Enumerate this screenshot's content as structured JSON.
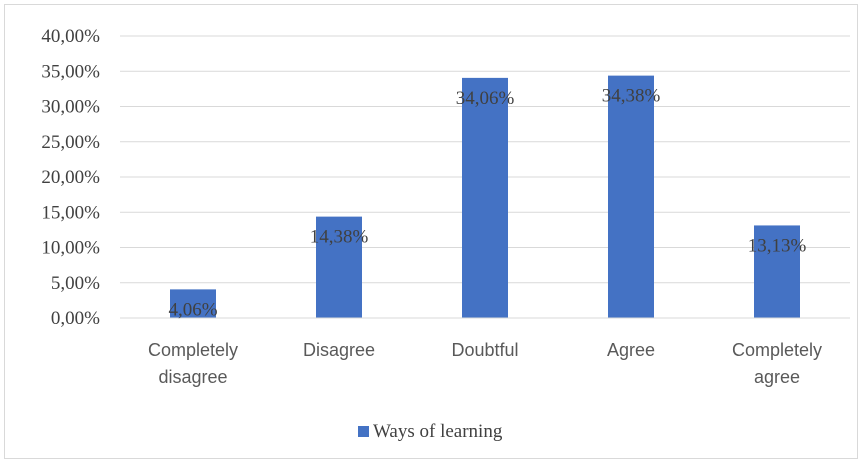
{
  "chart_data": {
    "type": "bar",
    "categories": [
      [
        "Completely",
        "disagree"
      ],
      [
        "Disagree"
      ],
      [
        "Doubtful"
      ],
      [
        "Agree"
      ],
      [
        "Completely",
        "agree"
      ]
    ],
    "series": [
      {
        "name": "Ways of learning",
        "values": [
          4.06,
          14.38,
          34.06,
          34.38,
          13.13
        ],
        "data_labels": [
          "4,06%",
          "14,38%",
          "34,06%",
          "34,38%",
          "13,13%"
        ],
        "color": "#4472c4"
      }
    ],
    "ylim": [
      0,
      40
    ],
    "y_ticks": [
      "0,00%",
      "5,00%",
      "10,00%",
      "15,00%",
      "20,00%",
      "25,00%",
      "30,00%",
      "35,00%",
      "40,00%"
    ],
    "grid": true,
    "legend_position": "bottom",
    "title": "",
    "xlabel": "",
    "ylabel": ""
  }
}
